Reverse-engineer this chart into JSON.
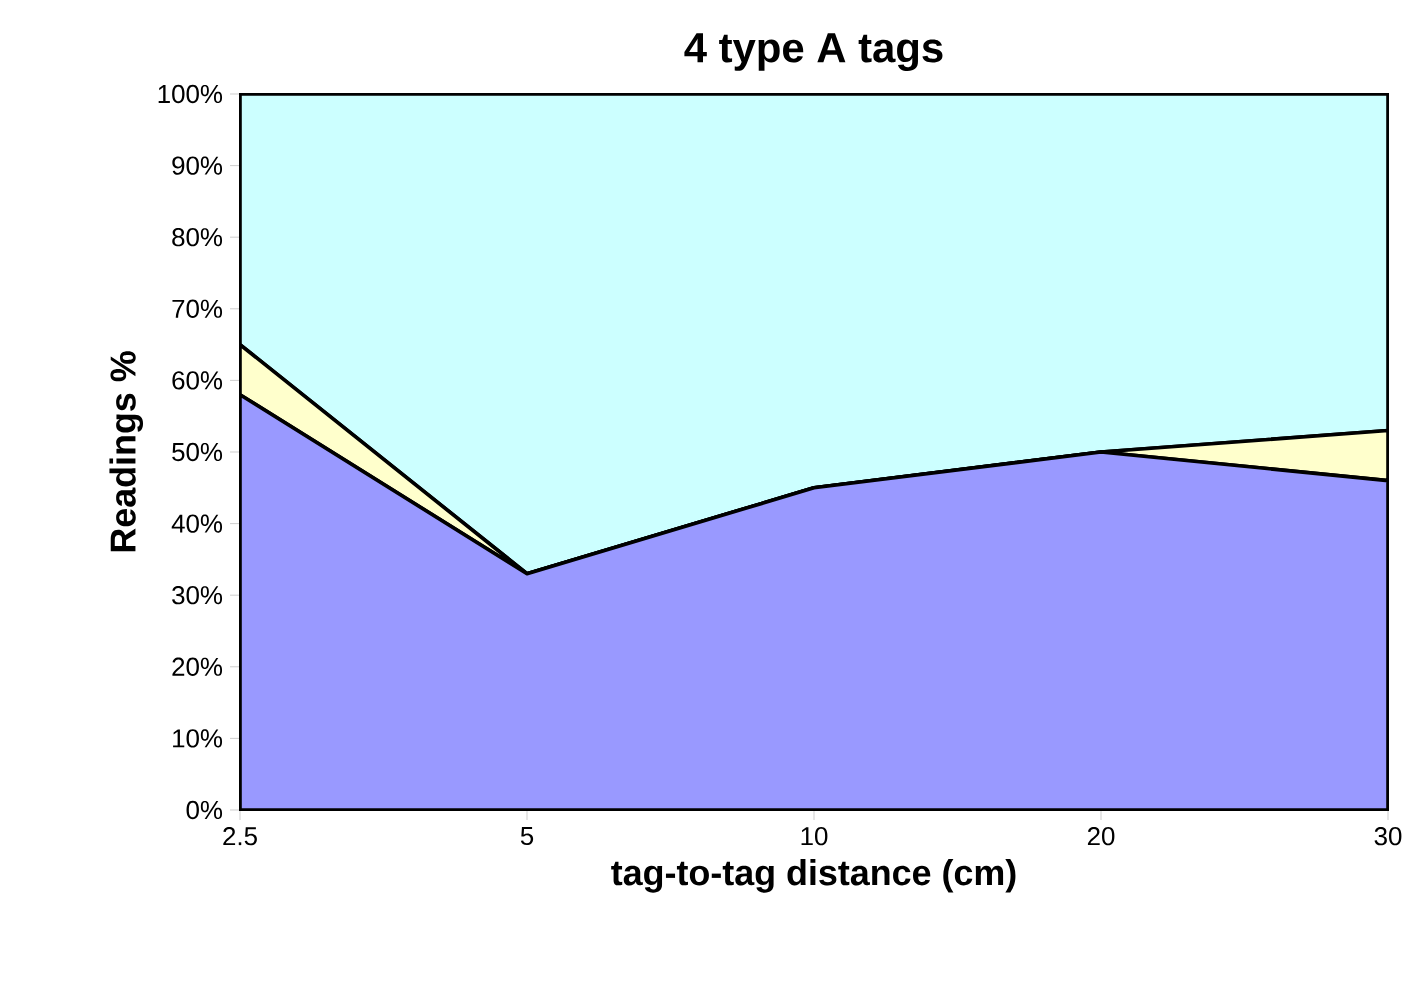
{
  "chart_data": {
    "type": "area",
    "stacked": true,
    "title": "4 type A tags",
    "xlabel": "tag-to-tag distance (cm)",
    "ylabel": "Readings %",
    "categories": [
      "2.5",
      "5",
      "10",
      "20",
      "30"
    ],
    "series": [
      {
        "color": "#9999ff",
        "values": [
          58,
          33,
          45,
          50,
          46
        ]
      },
      {
        "color": "#ffffcc",
        "values": [
          7,
          0,
          0,
          0,
          7
        ]
      },
      {
        "color": "#ccffff",
        "values": [
          35,
          67,
          55,
          50,
          47
        ]
      }
    ],
    "ylim": [
      0,
      100
    ],
    "yticks": [
      {
        "value": 0,
        "label": "0%"
      },
      {
        "value": 10,
        "label": "10%"
      },
      {
        "value": 20,
        "label": "20%"
      },
      {
        "value": 30,
        "label": "30%"
      },
      {
        "value": 40,
        "label": "40%"
      },
      {
        "value": 50,
        "label": "50%"
      },
      {
        "value": 60,
        "label": "60%"
      },
      {
        "value": 70,
        "label": "70%"
      },
      {
        "value": 80,
        "label": "80%"
      },
      {
        "value": 90,
        "label": "90%"
      },
      {
        "value": 100,
        "label": "100%"
      }
    ],
    "tick_labels": true
  }
}
